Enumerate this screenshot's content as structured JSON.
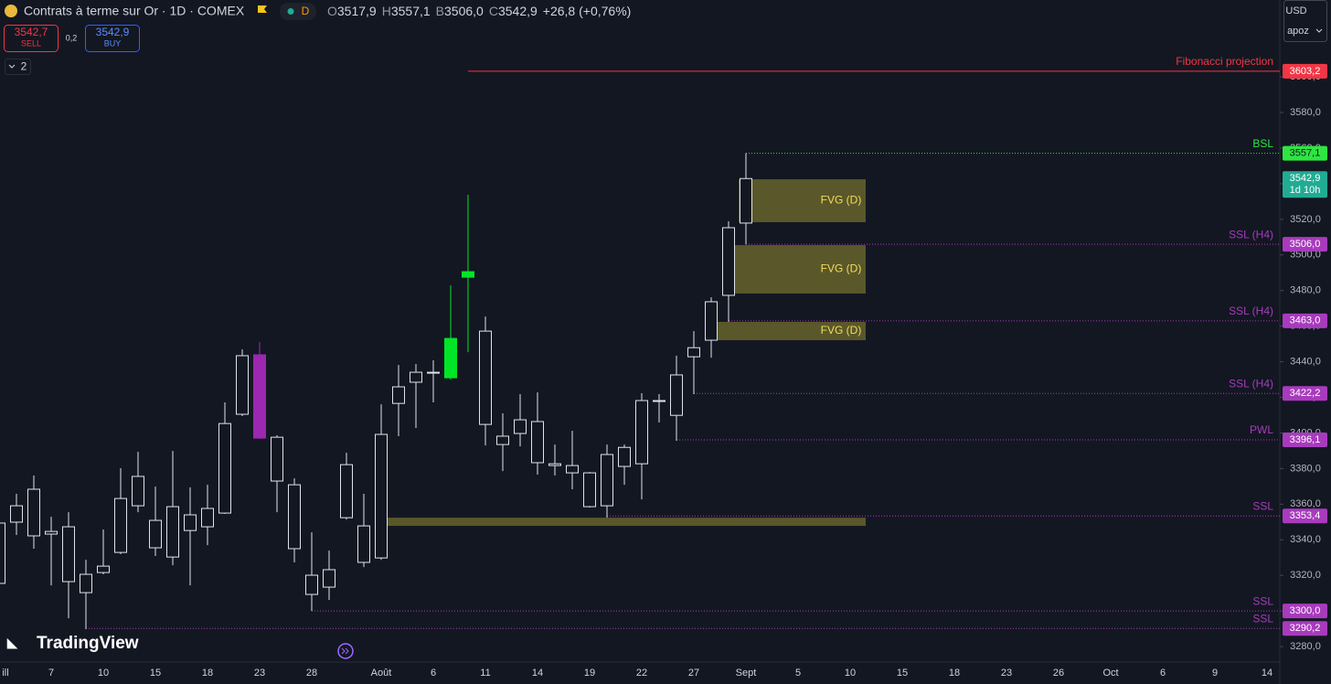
{
  "header": {
    "title": "Contrats à terme sur Or · 1D · COMEX",
    "badge": "D",
    "ohlc": [
      {
        "key": "O",
        "value": "3517,9"
      },
      {
        "key": "H",
        "value": "3557,1"
      },
      {
        "key": "B",
        "value": "3506,0"
      },
      {
        "key": "C",
        "value": "3542,9"
      }
    ],
    "change": "+26,8 (+0,76%)",
    "sell": {
      "price": "3542,7",
      "label": "SELL"
    },
    "spread": "0,2",
    "buy": {
      "price": "3542,9",
      "label": "BUY"
    },
    "indicators": "2",
    "currency": "USD",
    "user": "apoz",
    "logo": "TradingView"
  },
  "chart_data": {
    "type": "candlestick",
    "color": "#e0e3eb",
    "categories": [
      "ill",
      null,
      null,
      "7",
      null,
      null,
      "10",
      null,
      null,
      "15",
      null,
      null,
      "18",
      null,
      null,
      "23",
      null,
      null,
      "28",
      null,
      null,
      null,
      "Août",
      null,
      null,
      "6",
      null,
      null,
      "11",
      null,
      null,
      "14",
      null,
      null,
      "19",
      null,
      null,
      "22",
      null,
      null,
      "27",
      null,
      null,
      "Sept",
      null,
      null,
      "5",
      null,
      null,
      "10",
      null,
      null,
      "15",
      null,
      null,
      "18",
      null,
      null,
      "23",
      null,
      null,
      "26",
      null,
      null,
      "Oct",
      null,
      null,
      "6",
      null,
      null,
      "9",
      null,
      null,
      "14"
    ],
    "open": [
      3315.5,
      3349.9,
      3368.4,
      3343.2,
      3347.3,
      3310.3,
      3321.6,
      3332.9,
      3359.1,
      3350.9,
      3330.3,
      3345.2,
      3347.3,
      3355.0,
      3410.5,
      3443.9,
      3397.6,
      3370.9,
      3309.3,
      3313.4,
      3352.4,
      3347.8,
      3329.8,
      3416.6,
      3428.5,
      3434.1,
      3431.0,
      3487.5,
      3457.2,
      3398.2,
      3399.7,
      3406.4,
      3382.7,
      3381.7,
      3377.6,
      3359.1,
      3381.2,
      3382.7,
      3417.7,
      3409.9,
      3442.8,
      3452.1,
      3477.3,
      3517.9,
      null,
      null,
      null,
      null,
      null,
      null,
      null,
      null,
      null,
      null,
      null,
      null,
      null,
      null,
      null,
      null,
      null,
      null,
      null,
      null,
      null,
      null,
      null,
      null,
      null,
      null,
      null,
      null,
      null,
      null
    ],
    "high": [
      3351.0,
      3365.8,
      3376.1,
      3352.9,
      3355.5,
      3328.8,
      3345.8,
      3380.2,
      3389.4,
      3369.9,
      3389.9,
      3369.4,
      3370.9,
      3417.2,
      3446.9,
      3451.1,
      3398.7,
      3374.5,
      3344.2,
      3333.9,
      3388.9,
      3365.8,
      3416.1,
      3438.2,
      3438.7,
      3440.8,
      3482.9,
      3533.8,
      3465.4,
      3411.0,
      3421.8,
      3422.8,
      3393.5,
      3401.2,
      3378.1,
      3393.5,
      3393.5,
      3422.3,
      3421.8,
      3443.4,
      3457.2,
      3476.2,
      3518.9,
      3557.1,
      null,
      null,
      null,
      null,
      null,
      null,
      null,
      null,
      null,
      null,
      null,
      null,
      null,
      null,
      null,
      null,
      null,
      null,
      null,
      null,
      null,
      null,
      null,
      null,
      null,
      null,
      null,
      null,
      null,
      null
    ],
    "low": [
      3313.0,
      3342.7,
      3335.0,
      3314.4,
      3295.9,
      3289.8,
      3320.6,
      3331.9,
      3355.5,
      3330.9,
      3325.7,
      3314.4,
      3337.0,
      3354.5,
      3409.5,
      3396.6,
      3355.5,
      3327.3,
      3300.0,
      3306.2,
      3351.4,
      3324.7,
      3328.8,
      3398.2,
      3402.8,
      3417.2,
      3430.0,
      3445.4,
      3393.0,
      3378.6,
      3392.5,
      3376.6,
      3376.1,
      3368.4,
      3358.1,
      3352.4,
      3370.9,
      3362.7,
      3405.9,
      3395.6,
      3421.8,
      3442.3,
      3462.4,
      3506.0,
      null,
      null,
      null,
      null,
      null,
      null,
      null,
      null,
      null,
      null,
      null,
      null,
      null,
      null,
      null,
      null,
      null,
      null,
      null,
      null,
      null,
      null,
      null,
      null,
      null,
      null,
      null,
      null,
      null,
      null
    ],
    "close": [
      3349.4,
      3359.1,
      3342.2,
      3344.7,
      3316.5,
      3320.6,
      3325.2,
      3363.2,
      3375.6,
      3335.5,
      3358.6,
      3354.0,
      3357.6,
      3405.3,
      3443.4,
      3397.1,
      3373.0,
      3335.0,
      3320.1,
      3323.2,
      3382.2,
      3327.3,
      3399.2,
      3425.9,
      3434.1,
      3433.6,
      3453.1,
      3490.6,
      3404.8,
      3393.5,
      3407.4,
      3383.3,
      3381.7,
      3377.6,
      3358.6,
      3387.9,
      3391.9,
      3418.2,
      3418.2,
      3432.6,
      3447.9,
      3473.7,
      3515.3,
      3542.9,
      null,
      null,
      null,
      null,
      null,
      null,
      null,
      null,
      null,
      null,
      null,
      null,
      null,
      null,
      null,
      null,
      null,
      null,
      null,
      null,
      null,
      null,
      null,
      null,
      null,
      null,
      null,
      null,
      null,
      null
    ],
    "colors": [
      "#e0e3eb",
      "#e0e3eb",
      "#e0e3eb",
      "#e0e3eb",
      "#e0e3eb",
      "#e0e3eb",
      "#e0e3eb",
      "#e0e3eb",
      "#e0e3eb",
      "#e0e3eb",
      "#e0e3eb",
      "#e0e3eb",
      "#e0e3eb",
      "#e0e3eb",
      "#e0e3eb",
      "#9c27b0",
      "#e0e3eb",
      "#e0e3eb",
      "#e0e3eb",
      "#e0e3eb",
      "#e0e3eb",
      "#e0e3eb",
      "#e0e3eb",
      "#e0e3eb",
      "#e0e3eb",
      "#e0e3eb",
      "#00e626",
      "#00e626",
      "#e0e3eb",
      "#e0e3eb",
      "#e0e3eb",
      "#e0e3eb",
      "#e0e3eb",
      "#e0e3eb",
      "#e0e3eb",
      "#e0e3eb",
      "#e0e3eb",
      "#e0e3eb",
      "#e0e3eb",
      "#e0e3eb",
      "#e0e3eb",
      "#e0e3eb",
      "#e0e3eb",
      "#e0e3eb",
      null,
      null,
      null,
      null,
      null,
      null,
      null,
      null,
      null,
      null,
      null,
      null,
      null,
      null,
      null,
      null,
      null,
      null,
      null,
      null,
      null,
      null,
      null,
      null,
      null,
      null,
      null,
      null,
      null,
      null
    ],
    "ylim": [
      3270.8,
      3643.2
    ],
    "yticks": [
      {
        "value": 3280,
        "label": "3280,0"
      },
      {
        "value": 3300,
        "label": "3300,0"
      },
      {
        "value": 3320,
        "label": "3320,0"
      },
      {
        "value": 3340,
        "label": "3340,0"
      },
      {
        "value": 3360,
        "label": "3360,0"
      },
      {
        "value": 3380,
        "label": "3380,0"
      },
      {
        "value": 3400,
        "label": "3400,0"
      },
      {
        "value": 3420,
        "label": "3420,0"
      },
      {
        "value": 3440,
        "label": "3440,0"
      },
      {
        "value": 3460,
        "label": "3460,0"
      },
      {
        "value": 3480,
        "label": "3480,0"
      },
      {
        "value": 3500,
        "label": "3500,0"
      },
      {
        "value": 3520,
        "label": "3520,0"
      },
      {
        "value": 3540,
        "label": "3540,0"
      },
      {
        "value": 3560,
        "label": "3560,0"
      },
      {
        "value": 3580,
        "label": "3580,0"
      },
      {
        "value": 3600,
        "label": "3600,0"
      }
    ],
    "levels": [
      {
        "name": "Fibonacci projection",
        "value": 3603.2,
        "value_label": "3603,2",
        "color": "#f23645",
        "style": "solid"
      },
      {
        "name": "BSL",
        "value": 3557.1,
        "value_label": "3557,1",
        "color": "#2ee640",
        "style": "dotted"
      },
      {
        "name": "SSL (H4)",
        "value": 3506.0,
        "value_label": "3506,0",
        "color": "#a83bbd",
        "style": "dotted"
      },
      {
        "name": "SSL (H4)",
        "value": 3463.0,
        "value_label": "3463,0",
        "color": "#a83bbd",
        "style": "dotted"
      },
      {
        "name": "SSL (H4)",
        "value": 3422.2,
        "value_label": "3422,2",
        "color": "#a83bbd",
        "style": "dotted"
      },
      {
        "name": "PWL",
        "value": 3396.1,
        "value_label": "3396,1",
        "color": "#a83bbd",
        "style": "dotted"
      },
      {
        "name": "SSL",
        "value": 3353.4,
        "value_label": "3353,4",
        "color": "#a83bbd",
        "style": "dotted"
      },
      {
        "name": "SSL",
        "value": 3300.0,
        "value_label": "3300,0",
        "color": "#a83bbd",
        "style": "dotted"
      },
      {
        "name": "SSL",
        "value": 3290.2,
        "value_label": "3290,2",
        "color": "#a83bbd",
        "style": "dotted"
      }
    ],
    "zones": [
      {
        "label": "FVG (D)",
        "top": 3542.5,
        "bottom": 3518.4
      },
      {
        "label": "FVG (D)",
        "top": 3505.5,
        "bottom": 3478.3
      },
      {
        "label": "FVG (D)",
        "top": 3462.4,
        "bottom": 3452.1
      },
      {
        "top": 3352.4,
        "bottom": 3347.8
      }
    ],
    "last_price": {
      "value": 3542.9,
      "label": "3542,9",
      "countdown": "1d 10h"
    }
  }
}
